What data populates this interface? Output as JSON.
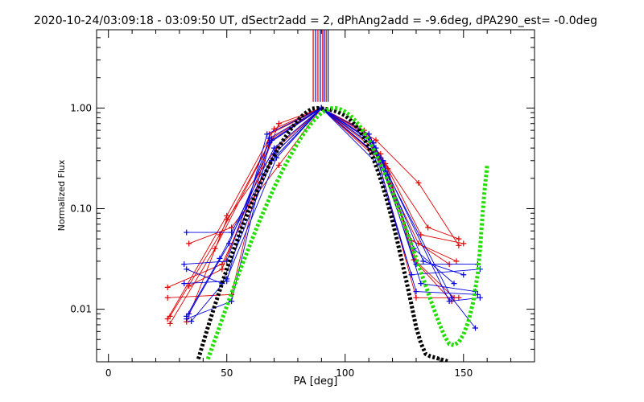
{
  "chart_data": {
    "type": "line",
    "title": "2020-10-24/03:09:18 - 03:09:50 UT, dSectr2add = 2, dPhAng2add = -9.6deg, dPA290_est= -0.0deg",
    "xlabel": "PA [deg]",
    "ylabel": "Normalized Flux",
    "xlim": [
      -5,
      180
    ],
    "ylim": [
      0.003,
      6.0
    ],
    "yscale": "log",
    "x_ticks": [
      0,
      50,
      100,
      150
    ],
    "x_tick_labels": [
      "0",
      "50",
      "100",
      "150"
    ],
    "y_ticks": [
      0.01,
      0.1,
      1.0
    ],
    "y_tick_labels": [
      "0.01",
      "0.10",
      "1.00"
    ],
    "grid": false,
    "colors": {
      "red": "#e00000",
      "blue": "#0000e0",
      "black": "#000000",
      "green": "#22dd00"
    },
    "vertical_lines": [
      {
        "x": 86.5,
        "color": "#e00000"
      },
      {
        "x": 87.5,
        "color": "#0000e0"
      },
      {
        "x": 88.5,
        "color": "#e00000"
      },
      {
        "x": 89.5,
        "color": "#0000e0"
      },
      {
        "x": 90.5,
        "color": "#e00000"
      },
      {
        "x": 91.2,
        "color": "#0000e0"
      },
      {
        "x": 92.0,
        "color": "#e00000"
      },
      {
        "x": 92.8,
        "color": "#0000e0"
      }
    ],
    "vertical_lines_ymin": 1.15,
    "series": [
      {
        "color": "#e00000",
        "x": [
          25,
          50,
          70,
          90,
          110,
          135,
          148
        ],
        "y": [
          0.008,
          0.085,
          0.62,
          1.0,
          0.5,
          0.065,
          0.05
        ]
      },
      {
        "color": "#e00000",
        "x": [
          26,
          45,
          68,
          90,
          113,
          131,
          148
        ],
        "y": [
          0.0072,
          0.04,
          0.45,
          1.0,
          0.48,
          0.18,
          0.043
        ]
      },
      {
        "color": "#e00000",
        "x": [
          34,
          52,
          72,
          90,
          115,
          130,
          146
        ],
        "y": [
          0.045,
          0.065,
          0.27,
          1.0,
          0.35,
          0.03,
          0.013
        ]
      },
      {
        "color": "#e00000",
        "x": [
          25,
          48,
          70,
          90,
          112,
          130,
          148
        ],
        "y": [
          0.0165,
          0.028,
          0.35,
          1.0,
          0.45,
          0.013,
          0.013
        ]
      },
      {
        "color": "#e00000",
        "x": [
          25,
          52,
          68,
          90,
          118,
          129,
          145
        ],
        "y": [
          0.013,
          0.014,
          0.55,
          1.0,
          0.25,
          0.031,
          0.012
        ]
      },
      {
        "color": "#e00000",
        "x": [
          34,
          48,
          72,
          90,
          110,
          128,
          147
        ],
        "y": [
          0.017,
          0.025,
          0.7,
          1.0,
          0.55,
          0.048,
          0.03
        ]
      },
      {
        "color": "#e00000",
        "x": [
          26,
          47,
          69,
          90,
          108,
          131,
          144
        ],
        "y": [
          0.0085,
          0.055,
          0.5,
          1.0,
          0.6,
          0.045,
          0.028
        ]
      },
      {
        "color": "#e00000",
        "x": [
          33,
          50,
          71,
          90,
          117,
          132,
          150
        ],
        "y": [
          0.0075,
          0.078,
          0.4,
          1.0,
          0.28,
          0.055,
          0.045
        ]
      },
      {
        "color": "#0000e0",
        "x": [
          33,
          52,
          70,
          90,
          112,
          130,
          156
        ],
        "y": [
          0.058,
          0.058,
          0.4,
          1.0,
          0.45,
          0.028,
          0.028
        ]
      },
      {
        "color": "#0000e0",
        "x": [
          32,
          50,
          68,
          90,
          110,
          128,
          157
        ],
        "y": [
          0.028,
          0.03,
          0.5,
          1.0,
          0.5,
          0.022,
          0.025
        ]
      },
      {
        "color": "#0000e0",
        "x": [
          33,
          48,
          69,
          90,
          115,
          132,
          155
        ],
        "y": [
          0.025,
          0.018,
          0.3,
          1.0,
          0.32,
          0.018,
          0.015
        ]
      },
      {
        "color": "#0000e0",
        "x": [
          32,
          50,
          67,
          90,
          112,
          130,
          156
        ],
        "y": [
          0.018,
          0.019,
          0.55,
          1.0,
          0.42,
          0.015,
          0.014
        ]
      },
      {
        "color": "#0000e0",
        "x": [
          33,
          47,
          70,
          90,
          118,
          145,
          155
        ],
        "y": [
          0.0085,
          0.032,
          0.35,
          1.0,
          0.22,
          0.013,
          0.0065
        ]
      },
      {
        "color": "#0000e0",
        "x": [
          33,
          52,
          68,
          90,
          110,
          144,
          157
        ],
        "y": [
          0.008,
          0.012,
          0.45,
          1.0,
          0.55,
          0.012,
          0.013
        ]
      },
      {
        "color": "#0000e0",
        "x": [
          35,
          50,
          71,
          90,
          113,
          133,
          150
        ],
        "y": [
          0.0076,
          0.02,
          0.32,
          1.0,
          0.4,
          0.03,
          0.022
        ]
      },
      {
        "color": "#0000e0",
        "x": [
          34,
          51,
          69,
          90,
          116,
          129,
          146
        ],
        "y": [
          0.009,
          0.045,
          0.48,
          1.0,
          0.3,
          0.04,
          0.018
        ]
      }
    ],
    "model_curves": [
      {
        "color": "#000000",
        "x": [
          38,
          40,
          42,
          44,
          46,
          48,
          50,
          52,
          54,
          56,
          58,
          60,
          62,
          64,
          66,
          68,
          70,
          72,
          74,
          76,
          78,
          80,
          82,
          84,
          86,
          88,
          90,
          92,
          94,
          96,
          98,
          100,
          102,
          104,
          106,
          108,
          110,
          112,
          114,
          116,
          118,
          120,
          122,
          124,
          126,
          128,
          130,
          132,
          134,
          136,
          138,
          140,
          142,
          144
        ],
        "y": [
          0.0032,
          0.0046,
          0.0066,
          0.0093,
          0.013,
          0.018,
          0.025,
          0.034,
          0.046,
          0.061,
          0.081,
          0.106,
          0.136,
          0.174,
          0.219,
          0.272,
          0.335,
          0.406,
          0.485,
          0.57,
          0.661,
          0.753,
          0.842,
          0.922,
          0.984,
          1.0,
          0.99,
          0.98,
          0.96,
          0.93,
          0.89,
          0.84,
          0.77,
          0.69,
          0.6,
          0.5,
          0.4,
          0.31,
          0.23,
          0.164,
          0.113,
          0.075,
          0.048,
          0.03,
          0.0185,
          0.0111,
          0.0066,
          0.0046,
          0.0036,
          0.0034,
          0.0033,
          0.0032,
          0.0031,
          0.003
        ]
      },
      {
        "color": "#22dd00",
        "x": [
          42,
          44,
          46,
          48,
          50,
          52,
          54,
          56,
          58,
          60,
          62,
          64,
          66,
          68,
          70,
          72,
          74,
          76,
          78,
          80,
          82,
          84,
          86,
          88,
          90,
          92,
          94,
          96,
          98,
          100,
          102,
          104,
          106,
          108,
          110,
          112,
          114,
          116,
          118,
          120,
          122,
          124,
          126,
          128,
          130,
          132,
          134,
          136,
          138,
          140,
          142,
          144,
          146,
          148,
          150,
          152,
          154,
          156,
          157,
          158,
          159,
          160
        ],
        "y": [
          0.0032,
          0.0043,
          0.0058,
          0.0079,
          0.0107,
          0.0144,
          0.0193,
          0.026,
          0.034,
          0.045,
          0.059,
          0.077,
          0.099,
          0.127,
          0.161,
          0.202,
          0.251,
          0.309,
          0.375,
          0.45,
          0.534,
          0.624,
          0.717,
          0.809,
          0.894,
          0.958,
          0.994,
          1.0,
          0.97,
          0.92,
          0.85,
          0.76,
          0.67,
          0.57,
          0.48,
          0.39,
          0.31,
          0.245,
          0.19,
          0.145,
          0.109,
          0.081,
          0.06,
          0.044,
          0.032,
          0.0235,
          0.0172,
          0.0126,
          0.0093,
          0.007,
          0.0054,
          0.0045,
          0.0044,
          0.0047,
          0.0056,
          0.0075,
          0.0115,
          0.022,
          0.04,
          0.085,
          0.16,
          0.27
        ]
      }
    ]
  }
}
